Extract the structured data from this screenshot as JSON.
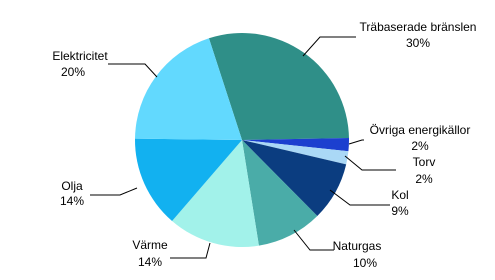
{
  "chart_data": {
    "type": "pie",
    "categories": [
      "Träbaserade bränslen",
      "Övriga energikällor",
      "Torv",
      "Kol",
      "Naturgas",
      "Värme",
      "Olja",
      "Elektricitet"
    ],
    "values": [
      30,
      2,
      2,
      9,
      10,
      14,
      14,
      20
    ],
    "value_labels": [
      "30%",
      "2%",
      "2%",
      "9%",
      "10%",
      "14%",
      "14%",
      "20%"
    ],
    "colors": [
      "#2f8f88",
      "#1c3fcf",
      "#aad8f6",
      "#0b3d80",
      "#4aaca8",
      "#a2f2ea",
      "#12b1f0",
      "#62d9fe"
    ]
  }
}
